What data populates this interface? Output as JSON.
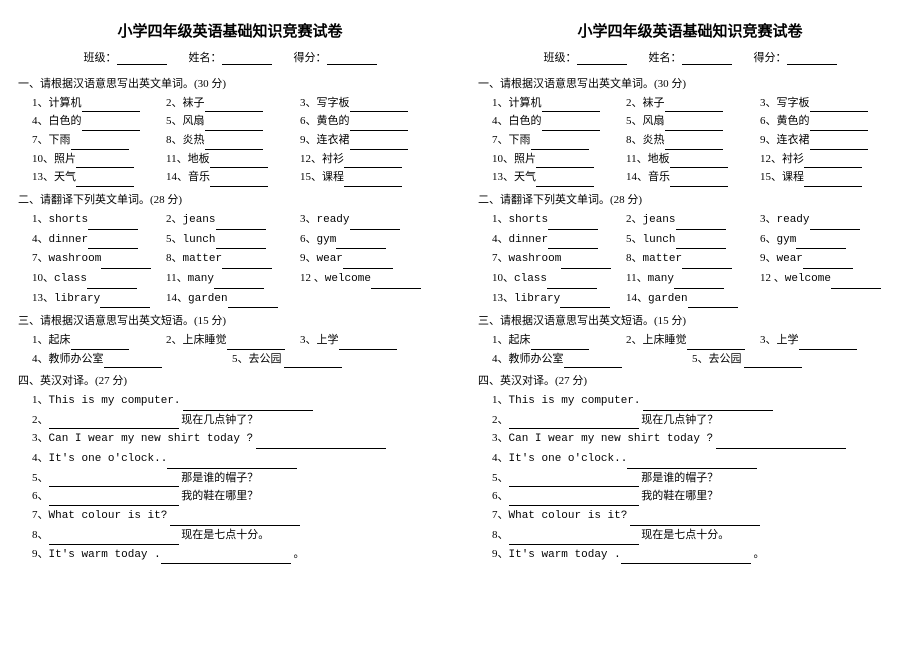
{
  "title": "小学四年级英语基础知识竞赛试卷",
  "header": {
    "class_label": "班级：",
    "name_label": "姓名：",
    "score_label": "得分："
  },
  "s1": {
    "title": "一、请根据汉语意思写出英文单词。(30 分)",
    "items": [
      "计算机",
      "袜子",
      "写字板",
      "白色的",
      "风扇",
      "黄色的",
      "下雨",
      "炎热",
      "连衣裙",
      "照片",
      "地板",
      "衬衫",
      "天气",
      "音乐",
      "课程"
    ]
  },
  "s2": {
    "title": "二、请翻译下列英文单词。(28 分)",
    "items": [
      "shorts",
      "jeans",
      "ready",
      "dinner",
      "lunch",
      "gym",
      "washroom",
      "matter",
      "wear",
      "class",
      "many",
      "welcome",
      "library",
      "garden"
    ]
  },
  "s3": {
    "title": "三、请根据汉语意思写出英文短语。(15 分)",
    "items": [
      "起床",
      "上床睡觉",
      "上学",
      "教师办公室",
      "去公园"
    ]
  },
  "s4": {
    "title": "四、英汉对译。(27 分)",
    "q1": "This is my computer.",
    "q2_suffix": "现在几点钟了？",
    "q3": "Can I wear my new shirt today ?",
    "q4": "It's one o'clock..",
    "q5_suffix": "那是谁的帽子？",
    "q6_suffix": "我的鞋在哪里？",
    "q7": "What colour is it?",
    "q8_suffix": "现在是七点十分。",
    "q9": "It's warm today ."
  }
}
